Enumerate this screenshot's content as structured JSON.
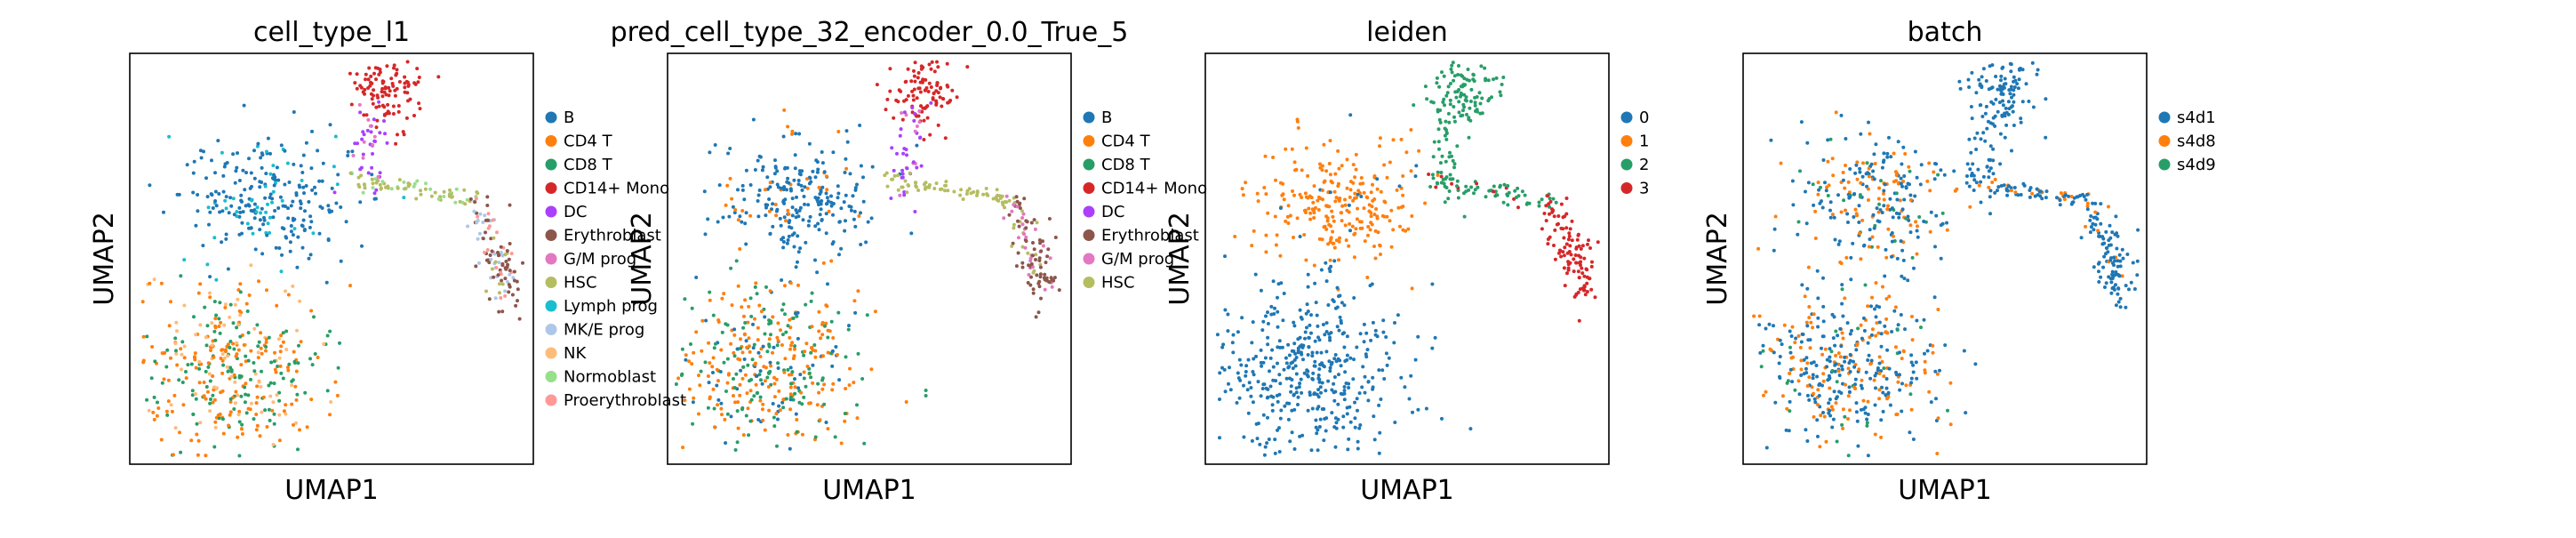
{
  "chart_data": [
    {
      "type": "scatter",
      "title": "cell_type_l1",
      "xlabel": "UMAP1",
      "ylabel": "UMAP2",
      "grid": false,
      "legend_position": "right",
      "legend": [
        {
          "label": "B",
          "color": "#1f77b4"
        },
        {
          "label": "CD4 T",
          "color": "#ff7f0e"
        },
        {
          "label": "CD8 T",
          "color": "#279e68"
        },
        {
          "label": "CD14+ Mono",
          "color": "#d62728"
        },
        {
          "label": "DC",
          "color": "#aa40fc"
        },
        {
          "label": "Erythroblast",
          "color": "#8c564b"
        },
        {
          "label": "G/M prog",
          "color": "#e377c2"
        },
        {
          "label": "HSC",
          "color": "#b5bd61"
        },
        {
          "label": "Lymph prog",
          "color": "#17becf"
        },
        {
          "label": "MK/E prog",
          "color": "#aec7e8"
        },
        {
          "label": "NK",
          "color": "#ffbb78"
        },
        {
          "label": "Normoblast",
          "color": "#98df8a"
        },
        {
          "label": "Proerythroblast",
          "color": "#ff9896"
        }
      ]
    },
    {
      "type": "scatter",
      "title": "pred_cell_type_32_encoder_0.0_True_5",
      "xlabel": "UMAP1",
      "ylabel": "UMAP2",
      "grid": false,
      "legend_position": "right",
      "legend": [
        {
          "label": "B",
          "color": "#1f77b4"
        },
        {
          "label": "CD4 T",
          "color": "#ff7f0e"
        },
        {
          "label": "CD8 T",
          "color": "#279e68"
        },
        {
          "label": "CD14+ Mono",
          "color": "#d62728"
        },
        {
          "label": "DC",
          "color": "#aa40fc"
        },
        {
          "label": "Erythroblast",
          "color": "#8c564b"
        },
        {
          "label": "G/M prog",
          "color": "#e377c2"
        },
        {
          "label": "HSC",
          "color": "#b5bd61"
        }
      ]
    },
    {
      "type": "scatter",
      "title": "leiden",
      "xlabel": "UMAP1",
      "ylabel": "UMAP2",
      "grid": false,
      "legend_position": "right",
      "legend": [
        {
          "label": "0",
          "color": "#1f77b4"
        },
        {
          "label": "1",
          "color": "#ff7f0e"
        },
        {
          "label": "2",
          "color": "#279e68"
        },
        {
          "label": "3",
          "color": "#d62728"
        }
      ]
    },
    {
      "type": "scatter",
      "title": "batch",
      "xlabel": "UMAP1",
      "ylabel": "UMAP2",
      "grid": false,
      "legend_position": "right",
      "legend": [
        {
          "label": "s4d1",
          "color": "#1f77b4"
        },
        {
          "label": "s4d8",
          "color": "#ff7f0e"
        },
        {
          "label": "s4d9",
          "color": "#279e68"
        }
      ]
    }
  ]
}
